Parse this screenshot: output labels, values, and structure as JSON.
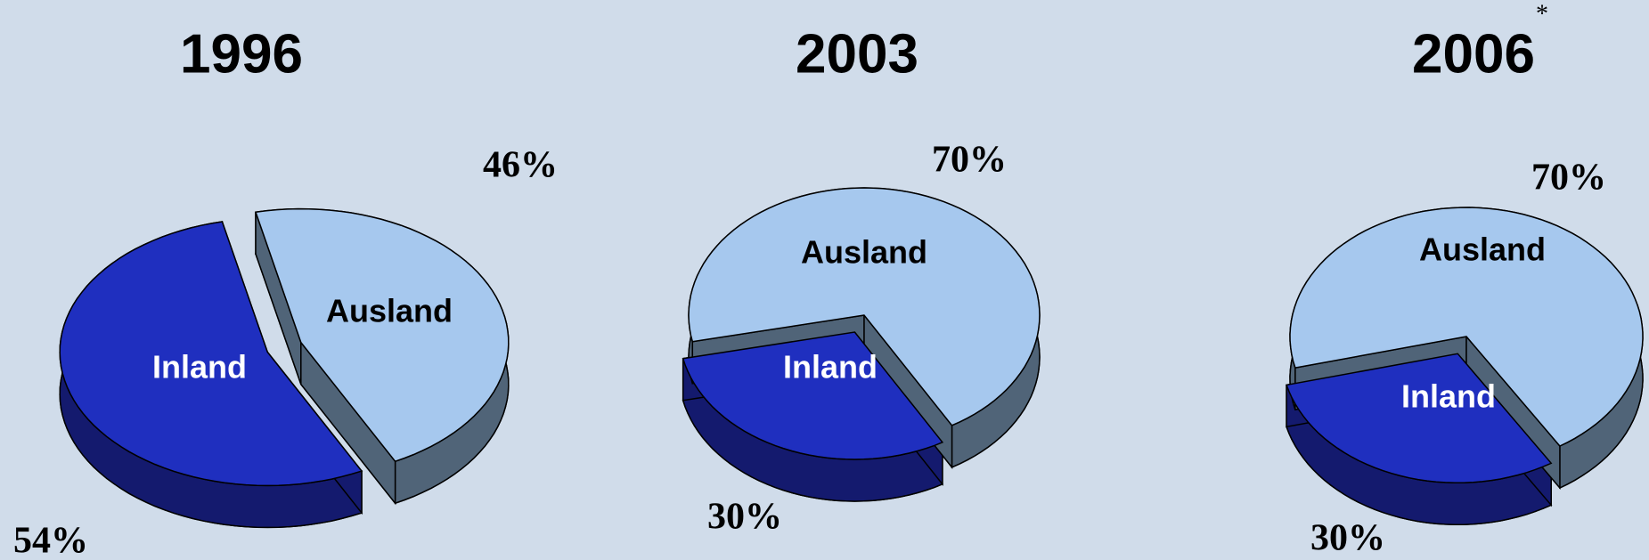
{
  "chart_data": [
    {
      "type": "pie",
      "title": "1996",
      "categories": [
        "Inland",
        "Ausland"
      ],
      "values": [
        54,
        46
      ],
      "value_labels": [
        "54%",
        "46%"
      ],
      "colors": [
        "#1f2fbf",
        "#a6c8ee"
      ]
    },
    {
      "type": "pie",
      "title": "2003",
      "categories": [
        "Inland",
        "Ausland"
      ],
      "values": [
        30,
        70
      ],
      "value_labels": [
        "30%",
        "70%"
      ],
      "colors": [
        "#1f2fbf",
        "#a6c8ee"
      ]
    },
    {
      "type": "pie",
      "title": "2006",
      "annotation": "*",
      "categories": [
        "Inland",
        "Ausland"
      ],
      "values": [
        30,
        70
      ],
      "value_labels": [
        "30%",
        "70%"
      ],
      "colors": [
        "#1f2fbf",
        "#a6c8ee"
      ]
    }
  ]
}
